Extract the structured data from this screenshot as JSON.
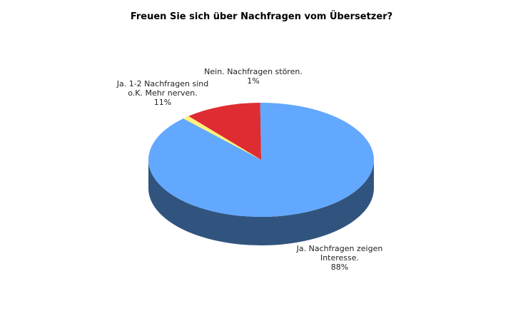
{
  "chart_data": {
    "type": "pie",
    "title": "Freuen Sie sich über Nachfragen vom Übersetzer?",
    "slices": [
      {
        "label_lines": [
          "Ja. Nachfragen zeigen",
          "Interesse."
        ],
        "value": 88,
        "value_label": "88%",
        "color": "#62A8FF",
        "side_color": "#31547F"
      },
      {
        "label_lines": [
          "Nein. Nachfragen stören."
        ],
        "value": 1,
        "value_label": "1%",
        "color": "#FFF27A",
        "side_color": "#B0A64A"
      },
      {
        "label_lines": [
          "Ja. 1-2 Nachfragen sind",
          "o.K. Mehr nerven."
        ],
        "value": 11,
        "value_label": "11%",
        "color": "#DE2C32",
        "side_color": "#7A1418"
      }
    ]
  }
}
